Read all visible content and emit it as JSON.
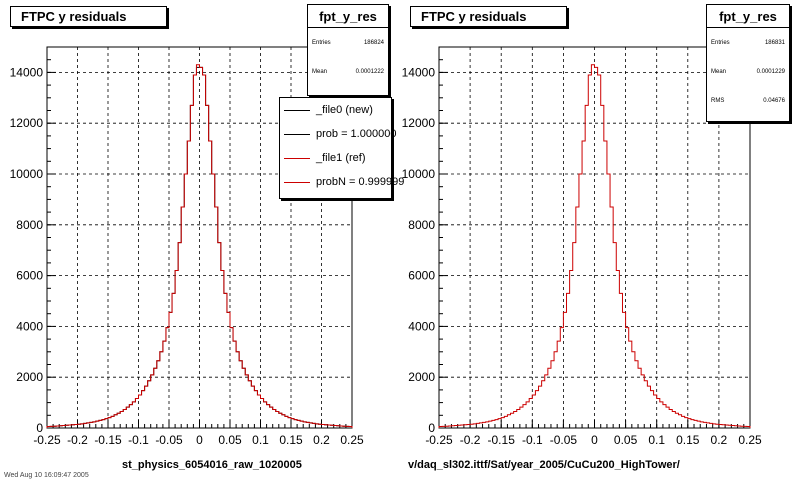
{
  "chart_data": [
    {
      "type": "histogram",
      "title": "FTPC y residuals",
      "xlim": [
        -0.25,
        0.25
      ],
      "ylim": [
        0,
        15000
      ],
      "x_ticks": [
        "-0.25",
        "-0.2",
        "-0.15",
        "-0.1",
        "-0.05",
        "0",
        "0.05",
        "0.1",
        "0.15",
        "0.2",
        "0.25"
      ],
      "y_ticks": [
        "0",
        "2000",
        "4000",
        "6000",
        "8000",
        "10000",
        "12000",
        "14000"
      ],
      "grid": true,
      "bin_width": 0.005,
      "series": [
        {
          "name": "_file0 (new)",
          "color": "#000000",
          "x": [
            -0.25,
            -0.245,
            -0.24,
            -0.235,
            -0.23,
            -0.225,
            -0.22,
            -0.215,
            -0.21,
            -0.205,
            -0.2,
            -0.195,
            -0.19,
            -0.185,
            -0.18,
            -0.175,
            -0.17,
            -0.165,
            -0.16,
            -0.155,
            -0.15,
            -0.145,
            -0.14,
            -0.135,
            -0.13,
            -0.125,
            -0.12,
            -0.115,
            -0.11,
            -0.105,
            -0.1,
            -0.095,
            -0.09,
            -0.085,
            -0.08,
            -0.075,
            -0.07,
            -0.065,
            -0.06,
            -0.055,
            -0.05,
            -0.045,
            -0.04,
            -0.035,
            -0.03,
            -0.025,
            -0.02,
            -0.015,
            -0.01,
            -0.005,
            0,
            0.005,
            0.01,
            0.015,
            0.02,
            0.025,
            0.03,
            0.035,
            0.04,
            0.045,
            0.05,
            0.055,
            0.06,
            0.065,
            0.07,
            0.075,
            0.08,
            0.085,
            0.09,
            0.095,
            0.1,
            0.105,
            0.11,
            0.115,
            0.12,
            0.125,
            0.13,
            0.135,
            0.14,
            0.145,
            0.15,
            0.155,
            0.16,
            0.165,
            0.17,
            0.175,
            0.18,
            0.185,
            0.19,
            0.195,
            0.2,
            0.205,
            0.21,
            0.215,
            0.22,
            0.225,
            0.23,
            0.235,
            0.24,
            0.245
          ],
          "values": [
            60,
            65,
            70,
            80,
            90,
            100,
            110,
            120,
            130,
            140,
            150,
            160,
            180,
            200,
            220,
            240,
            270,
            300,
            330,
            370,
            410,
            460,
            520,
            580,
            650,
            730,
            820,
            920,
            1030,
            1160,
            1300,
            1470,
            1650,
            1860,
            2090,
            2350,
            2650,
            3000,
            3420,
            3950,
            4550,
            5300,
            6200,
            7300,
            8700,
            10000,
            11300,
            12700,
            13900,
            14200,
            14200,
            13900,
            12700,
            11300,
            10000,
            8700,
            7300,
            6200,
            5300,
            4550,
            3950,
            3420,
            3000,
            2650,
            2350,
            2090,
            1860,
            1650,
            1470,
            1300,
            1160,
            1030,
            920,
            820,
            730,
            650,
            580,
            520,
            460,
            410,
            370,
            330,
            300,
            270,
            240,
            220,
            200,
            180,
            160,
            150,
            140,
            130,
            120,
            110,
            100,
            90,
            80,
            70,
            65,
            60
          ]
        },
        {
          "name": "_file1 (ref)",
          "color": "#cc0000",
          "x": [
            -0.25,
            -0.245,
            -0.24,
            -0.235,
            -0.23,
            -0.225,
            -0.22,
            -0.215,
            -0.21,
            -0.205,
            -0.2,
            -0.195,
            -0.19,
            -0.185,
            -0.18,
            -0.175,
            -0.17,
            -0.165,
            -0.16,
            -0.155,
            -0.15,
            -0.145,
            -0.14,
            -0.135,
            -0.13,
            -0.125,
            -0.12,
            -0.115,
            -0.11,
            -0.105,
            -0.1,
            -0.095,
            -0.09,
            -0.085,
            -0.08,
            -0.075,
            -0.07,
            -0.065,
            -0.06,
            -0.055,
            -0.05,
            -0.045,
            -0.04,
            -0.035,
            -0.03,
            -0.025,
            -0.02,
            -0.015,
            -0.01,
            -0.005,
            0,
            0.005,
            0.01,
            0.015,
            0.02,
            0.025,
            0.03,
            0.035,
            0.04,
            0.045,
            0.05,
            0.055,
            0.06,
            0.065,
            0.07,
            0.075,
            0.08,
            0.085,
            0.09,
            0.095,
            0.1,
            0.105,
            0.11,
            0.115,
            0.12,
            0.125,
            0.13,
            0.135,
            0.14,
            0.145,
            0.15,
            0.155,
            0.16,
            0.165,
            0.17,
            0.175,
            0.18,
            0.185,
            0.19,
            0.195,
            0.2,
            0.205,
            0.21,
            0.215,
            0.22,
            0.225,
            0.23,
            0.235,
            0.24,
            0.245
          ],
          "values": [
            60,
            65,
            70,
            80,
            90,
            100,
            110,
            120,
            130,
            140,
            150,
            160,
            180,
            200,
            220,
            240,
            270,
            300,
            330,
            370,
            410,
            460,
            520,
            580,
            650,
            730,
            820,
            920,
            1030,
            1160,
            1300,
            1470,
            1650,
            1860,
            2090,
            2350,
            2650,
            3000,
            3420,
            3950,
            4550,
            5300,
            6200,
            7300,
            8700,
            10000,
            11300,
            12700,
            13900,
            14300,
            14200,
            13900,
            12700,
            11300,
            10000,
            8700,
            7300,
            6200,
            5300,
            4550,
            3950,
            3420,
            3000,
            2650,
            2350,
            2090,
            1860,
            1650,
            1470,
            1300,
            1160,
            1030,
            920,
            820,
            730,
            650,
            580,
            520,
            460,
            410,
            370,
            330,
            300,
            270,
            240,
            220,
            200,
            180,
            160,
            150,
            140,
            130,
            120,
            110,
            100,
            90,
            80,
            70,
            65,
            60
          ]
        }
      ]
    },
    {
      "type": "histogram",
      "title": "FTPC y residuals",
      "xlim": [
        -0.25,
        0.25
      ],
      "ylim": [
        0,
        15000
      ],
      "x_ticks": [
        "-0.25",
        "-0.2",
        "-0.15",
        "-0.1",
        "-0.05",
        "0",
        "0.05",
        "0.1",
        "0.15",
        "0.2",
        "0.25"
      ],
      "y_ticks": [
        "0",
        "2000",
        "4000",
        "6000",
        "8000",
        "10000",
        "12000",
        "14000"
      ],
      "grid": true,
      "bin_width": 0.005,
      "series": [
        {
          "color": "#cc0000",
          "x": [
            -0.25,
            -0.245,
            -0.24,
            -0.235,
            -0.23,
            -0.225,
            -0.22,
            -0.215,
            -0.21,
            -0.205,
            -0.2,
            -0.195,
            -0.19,
            -0.185,
            -0.18,
            -0.175,
            -0.17,
            -0.165,
            -0.16,
            -0.155,
            -0.15,
            -0.145,
            -0.14,
            -0.135,
            -0.13,
            -0.125,
            -0.12,
            -0.115,
            -0.11,
            -0.105,
            -0.1,
            -0.095,
            -0.09,
            -0.085,
            -0.08,
            -0.075,
            -0.07,
            -0.065,
            -0.06,
            -0.055,
            -0.05,
            -0.045,
            -0.04,
            -0.035,
            -0.03,
            -0.025,
            -0.02,
            -0.015,
            -0.01,
            -0.005,
            0,
            0.005,
            0.01,
            0.015,
            0.02,
            0.025,
            0.03,
            0.035,
            0.04,
            0.045,
            0.05,
            0.055,
            0.06,
            0.065,
            0.07,
            0.075,
            0.08,
            0.085,
            0.09,
            0.095,
            0.1,
            0.105,
            0.11,
            0.115,
            0.12,
            0.125,
            0.13,
            0.135,
            0.14,
            0.145,
            0.15,
            0.155,
            0.16,
            0.165,
            0.17,
            0.175,
            0.18,
            0.185,
            0.19,
            0.195,
            0.2,
            0.205,
            0.21,
            0.215,
            0.22,
            0.225,
            0.23,
            0.235,
            0.24,
            0.245
          ],
          "values": [
            60,
            65,
            70,
            80,
            90,
            100,
            110,
            120,
            130,
            140,
            150,
            160,
            180,
            200,
            220,
            240,
            270,
            300,
            330,
            370,
            410,
            460,
            520,
            580,
            650,
            730,
            820,
            920,
            1030,
            1160,
            1300,
            1470,
            1650,
            1860,
            2090,
            2350,
            2650,
            3000,
            3420,
            3950,
            4550,
            5300,
            6200,
            7300,
            8700,
            10000,
            11300,
            12700,
            13900,
            14300,
            14200,
            13900,
            12700,
            11300,
            10000,
            8700,
            7300,
            6200,
            5300,
            4550,
            3950,
            3420,
            3000,
            2650,
            2350,
            2090,
            1860,
            1650,
            1470,
            1300,
            1160,
            1030,
            920,
            820,
            730,
            650,
            580,
            520,
            460,
            410,
            370,
            330,
            300,
            270,
            240,
            220,
            200,
            180,
            160,
            150,
            140,
            130,
            120,
            110,
            100,
            90,
            80,
            70,
            65,
            60
          ]
        }
      ]
    }
  ],
  "panels": [
    {
      "title": "FTPC y residuals",
      "stats": {
        "name": "fpt_y_res",
        "entries_label": "Entries",
        "entries": "186824",
        "mean_label": "Mean",
        "mean": "0.0001222"
      },
      "legend": [
        {
          "label": "_file0 (new)",
          "color": "#000000"
        },
        {
          "label": "prob = 1.000000",
          "color": "#000000"
        },
        {
          "label": "_file1 (ref)",
          "color": "#cc0000"
        },
        {
          "label": "probN = 0.999999",
          "color": "#cc0000"
        }
      ],
      "footer": "st_physics_6054016_raw_1020005"
    },
    {
      "title": "FTPC y residuals",
      "stats": {
        "name": "fpt_y_res",
        "entries_label": "Entries",
        "entries": "186831",
        "mean_label": "Mean",
        "mean": "0.0001229",
        "rms_label": "RMS",
        "rms": "0.04676"
      },
      "footer": "v/daq_sl302.ittf/Sat/year_2005/CuCu200_HighTower/"
    }
  ],
  "timestamp": "Wed Aug 10 16:09:47 2005"
}
